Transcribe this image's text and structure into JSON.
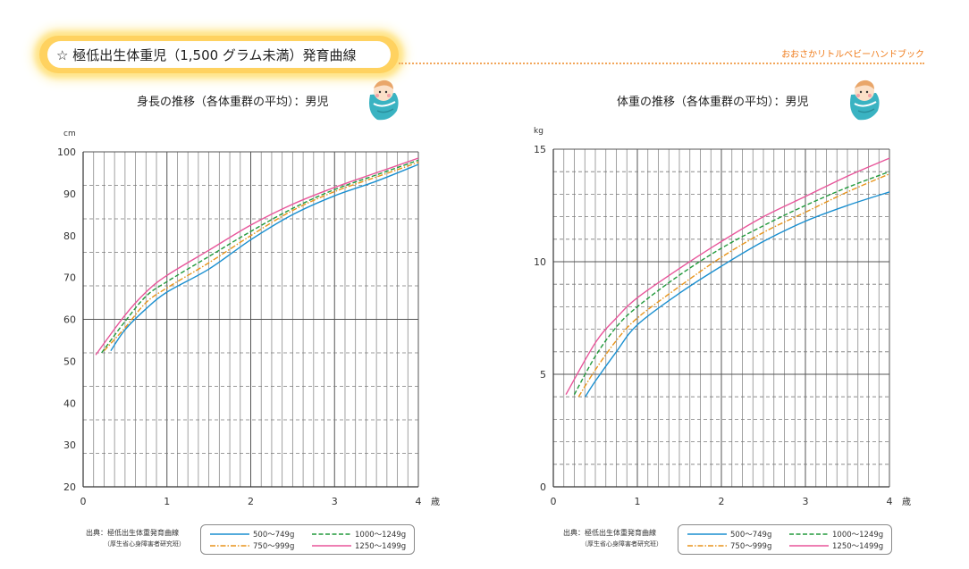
{
  "header": {
    "title": "☆ 極低出生体重児（1,500 グラム未満）発育曲線",
    "brand": "おおさかリトルベビーハンドブック"
  },
  "source": {
    "line1": "出典：極低出生体重発育曲線",
    "line2": "（厚生省心身障害者研究班）"
  },
  "legend": [
    {
      "label": "500～749g",
      "color": "#1a8fd0",
      "dash": "solid"
    },
    {
      "label": "1000～1249g",
      "color": "#229a3c",
      "dash": "dash"
    },
    {
      "label": "750～999g",
      "color": "#e8941a",
      "dash": "dashdot"
    },
    {
      "label": "1250～1499g",
      "color": "#e8559a",
      "dash": "solid"
    }
  ],
  "chart_data": [
    {
      "type": "line",
      "title": "身長の推移（各体重群の平均）：男児",
      "unit": "cm",
      "age_unit": "歳",
      "xlim": [
        0,
        4
      ],
      "ylim": [
        20,
        100
      ],
      "x_ticks": [
        0,
        1,
        2,
        3,
        4
      ],
      "y_ticks": [
        20,
        30,
        40,
        50,
        60,
        70,
        80,
        90,
        100
      ],
      "grid": true,
      "series": [
        {
          "name": "500～749g",
          "color": "#1a8fd0",
          "dash": "solid",
          "points": [
            [
              0.33,
              52.5
            ],
            [
              0.5,
              57.5
            ],
            [
              0.75,
              62.5
            ],
            [
              1,
              66.5
            ],
            [
              1.5,
              72
            ],
            [
              2,
              79
            ],
            [
              2.5,
              85
            ],
            [
              3,
              89.5
            ],
            [
              3.5,
              93
            ],
            [
              4,
              97
            ]
          ]
        },
        {
          "name": "750～999g",
          "color": "#e8941a",
          "dash": "dashdot",
          "points": [
            [
              0.25,
              52.5
            ],
            [
              0.5,
              58
            ],
            [
              0.75,
              64
            ],
            [
              1,
              67.5
            ],
            [
              1.5,
              73.5
            ],
            [
              2,
              80
            ],
            [
              2.5,
              86
            ],
            [
              3,
              90.5
            ],
            [
              3.5,
              94
            ],
            [
              4,
              97.5
            ]
          ]
        },
        {
          "name": "1000～1249g",
          "color": "#229a3c",
          "dash": "dash",
          "points": [
            [
              0.22,
              52
            ],
            [
              0.5,
              59.5
            ],
            [
              0.75,
              65.5
            ],
            [
              1,
              69
            ],
            [
              1.5,
              75
            ],
            [
              2,
              81
            ],
            [
              2.5,
              86.5
            ],
            [
              3,
              91
            ],
            [
              3.5,
              94.5
            ],
            [
              4,
              98
            ]
          ]
        },
        {
          "name": "1250～1499g",
          "color": "#e8559a",
          "dash": "solid",
          "points": [
            [
              0.15,
              51.5
            ],
            [
              0.5,
              61
            ],
            [
              0.75,
              66.5
            ],
            [
              1,
              70.5
            ],
            [
              1.5,
              76.5
            ],
            [
              2,
              82.5
            ],
            [
              2.5,
              87.5
            ],
            [
              3,
              91.5
            ],
            [
              3.5,
              95
            ],
            [
              4,
              98.5
            ]
          ]
        }
      ]
    },
    {
      "type": "line",
      "title": "体重の推移（各体重群の平均）：男児",
      "unit": "kg",
      "age_unit": "歳",
      "xlim": [
        0,
        4
      ],
      "ylim": [
        0,
        15
      ],
      "x_ticks": [
        0,
        1,
        2,
        3,
        4
      ],
      "y_ticks": [
        0,
        5,
        10,
        15
      ],
      "grid": true,
      "series": [
        {
          "name": "500～749g",
          "color": "#1a8fd0",
          "dash": "solid",
          "points": [
            [
              0.38,
              4.0
            ],
            [
              0.5,
              4.7
            ],
            [
              0.75,
              6.0
            ],
            [
              1,
              7.2
            ],
            [
              1.5,
              8.6
            ],
            [
              2,
              9.8
            ],
            [
              2.5,
              10.9
            ],
            [
              3,
              11.8
            ],
            [
              3.5,
              12.5
            ],
            [
              4,
              13.1
            ]
          ]
        },
        {
          "name": "750～999g",
          "color": "#e8941a",
          "dash": "dashdot",
          "points": [
            [
              0.3,
              4.0
            ],
            [
              0.5,
              5.2
            ],
            [
              0.75,
              6.5
            ],
            [
              1,
              7.5
            ],
            [
              1.5,
              8.9
            ],
            [
              2,
              10.2
            ],
            [
              2.5,
              11.3
            ],
            [
              3,
              12.2
            ],
            [
              3.5,
              13.1
            ],
            [
              4,
              13.9
            ]
          ]
        },
        {
          "name": "1000～1249g",
          "color": "#229a3c",
          "dash": "dash",
          "points": [
            [
              0.25,
              4.1
            ],
            [
              0.5,
              5.8
            ],
            [
              0.75,
              7.1
            ],
            [
              1,
              8.0
            ],
            [
              1.5,
              9.4
            ],
            [
              2,
              10.6
            ],
            [
              2.5,
              11.6
            ],
            [
              3,
              12.5
            ],
            [
              3.5,
              13.3
            ],
            [
              4,
              14.0
            ]
          ]
        },
        {
          "name": "1250～1499g",
          "color": "#e8559a",
          "dash": "solid",
          "points": [
            [
              0.15,
              4.1
            ],
            [
              0.5,
              6.4
            ],
            [
              0.75,
              7.5
            ],
            [
              1,
              8.4
            ],
            [
              1.5,
              9.7
            ],
            [
              2,
              10.9
            ],
            [
              2.5,
              12.0
            ],
            [
              3,
              12.9
            ],
            [
              3.5,
              13.8
            ],
            [
              4,
              14.6
            ]
          ]
        }
      ]
    }
  ]
}
